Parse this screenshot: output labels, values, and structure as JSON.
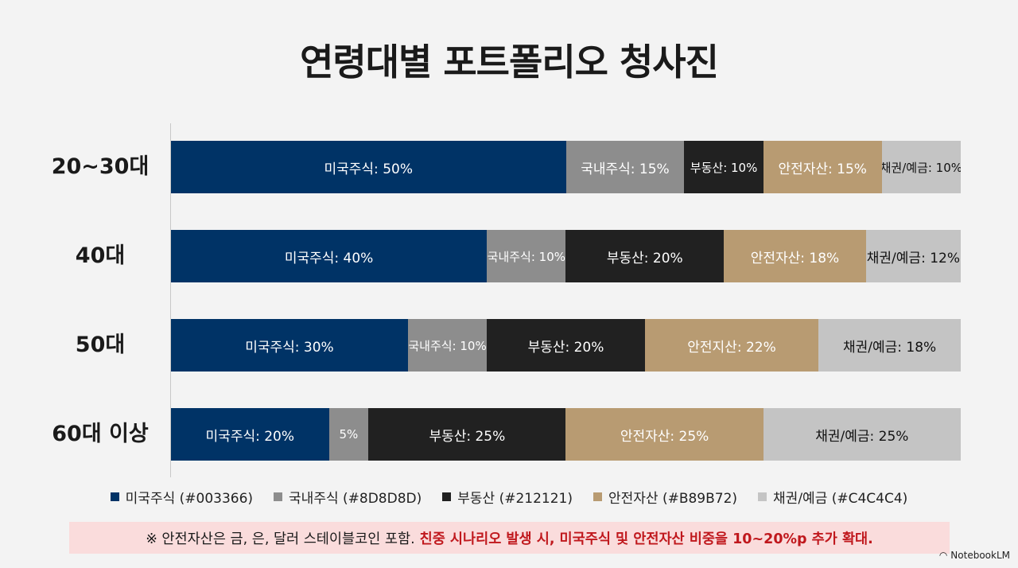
{
  "title": "연령대별 포트폴리오 청사진",
  "chart_data": {
    "type": "bar",
    "orientation": "horizontal",
    "stacked": true,
    "categories": [
      "20~30대",
      "40대",
      "50대",
      "60대 이상"
    ],
    "series": [
      {
        "name": "미국주식",
        "color": "#003366",
        "text_color": "#ffffff",
        "values": [
          50,
          40,
          30,
          20
        ],
        "labels": [
          "미국주식: 50%",
          "미국주식: 40%",
          "미국주식: 30%",
          "미국주식: 20%"
        ]
      },
      {
        "name": "국내주식",
        "color": "#8D8D8D",
        "text_color": "#ffffff",
        "values": [
          15,
          10,
          10,
          5
        ],
        "labels": [
          "국내주식: 15%",
          "국내주식: 10%",
          "국내주식: 10%",
          "5%"
        ]
      },
      {
        "name": "부동산",
        "color": "#212121",
        "text_color": "#ffffff",
        "values": [
          10,
          20,
          20,
          25
        ],
        "labels": [
          "부동산: 10%",
          "부동산: 20%",
          "부동산: 20%",
          "부동산: 25%"
        ]
      },
      {
        "name": "안전자산",
        "color": "#B89B72",
        "text_color": "#ffffff",
        "values": [
          15,
          18,
          22,
          25
        ],
        "labels": [
          "안전자산: 15%",
          "안전자산: 18%",
          "안전지산: 22%",
          "안전자산: 25%"
        ]
      },
      {
        "name": "채권/예금",
        "color": "#C4C4C4",
        "text_color": "#111111",
        "values": [
          10,
          12,
          18,
          25
        ],
        "labels": [
          "채권/예금: 10%",
          "채권/예금: 12%",
          "채권/예금: 18%",
          "채권/예금: 25%"
        ]
      }
    ],
    "legend": {
      "position": "bottom",
      "items": [
        {
          "label": "미국주식 (#003366)",
          "color": "#003366"
        },
        {
          "label": "국내주식 (#8D8D8D)",
          "color": "#8D8D8D"
        },
        {
          "label": "부동산 (#212121)",
          "color": "#212121"
        },
        {
          "label": "안전자산 (#B89B72)",
          "color": "#B89B72"
        },
        {
          "label": "채권/예금 (#C4C4C4)",
          "color": "#C4C4C4"
        }
      ]
    },
    "xlim": [
      0,
      100
    ]
  },
  "note": {
    "plain": "※ 안전자산은 금, 은, 달러 스테이블코인 포함.",
    "emphasis": "친중 시나리오 발생 시, 미국주식 및 안전자산 비중을 10~20%p 추가 확대.",
    "background": "#FADCDC",
    "emphasis_color": "#C0181D"
  },
  "brand": {
    "name": "NotebookLM"
  }
}
